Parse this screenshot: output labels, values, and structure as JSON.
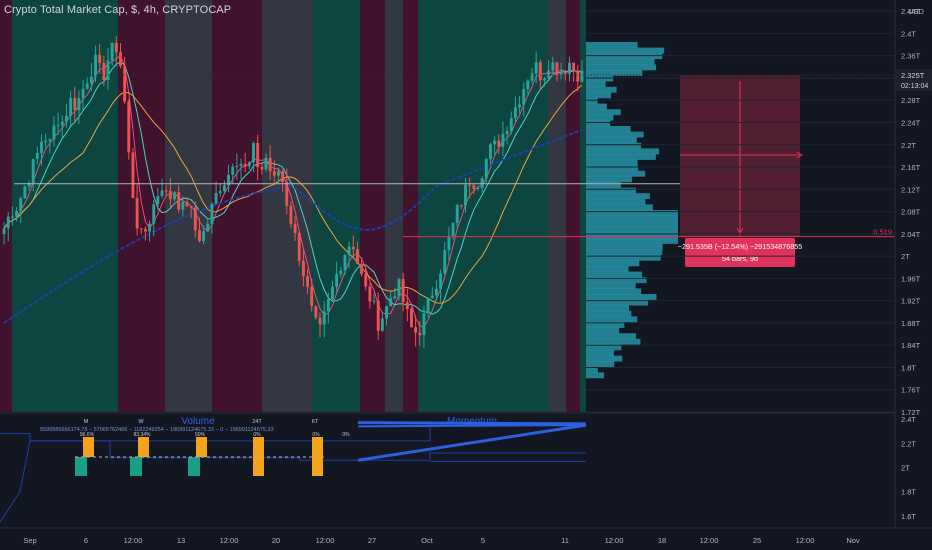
{
  "header": {
    "title": "Crypto Total Market Cap, $, 4h, CRYPTOCAP",
    "currency": "USD"
  },
  "price_scale": {
    "ticks": [
      "2.44T",
      "2.4T",
      "2.36T",
      "2.325T",
      "2.28T",
      "2.24T",
      "2.2T",
      "2.16T",
      "2.12T",
      "2.08T",
      "2.04T",
      "2T",
      "1.96T",
      "1.92T",
      "1.88T",
      "1.84T",
      "1.8T",
      "1.76T",
      "1.72T"
    ],
    "last_price": "2.325T",
    "countdown": "02:13:04",
    "level_label": "0.519"
  },
  "lower_scale": {
    "ticks": [
      "2.4T",
      "2.2T",
      "2T",
      "1.8T",
      "1.6T"
    ]
  },
  "time_axis": {
    "ticks": [
      "Sep",
      "6",
      "12:00",
      "13",
      "12:00",
      "20",
      "12:00",
      "27",
      "Oct",
      "5",
      "11",
      "12:00",
      "18",
      "12:00",
      "25",
      "12:00",
      "Nov"
    ]
  },
  "measure": {
    "line1": "−291.535B (−12.54%) −291534876855",
    "line2": "54 bars, 9d"
  },
  "indicators": {
    "volume_label": "Volume",
    "momentum_label": "Momentum",
    "label_M": "M",
    "label_W": "W",
    "label_24T": "24T",
    "label_6T": "6T",
    "stat_1": "96.6%",
    "stat_2": "83.34%",
    "stat_3": "50%",
    "stat_4": "0%",
    "stat_5": "0%",
    "stat_6": "0%",
    "vol_text": "5599585666174.78 − 57965762466 − 1182249254 − 196991124675.33 − 0 − 196991124675.33"
  },
  "colors": {
    "background": "#131722",
    "bull": "#26a69a",
    "bear": "#ef5350",
    "green_zone": "#0d4f45",
    "red_zone": "#4a1230",
    "gray_zone": "#3a3d48",
    "profile": "#2aa3b8",
    "ma_blue": "#1e3fa8",
    "ma_orange": "#e8a33c",
    "ma_teal": "#4fd2c9",
    "ma_pink": "#e0507a",
    "measure_box": "#5a1f33",
    "measure_label": "#e2325c",
    "orange_bar": "#f5a31a",
    "teal_bar": "#1a9e87"
  },
  "chart_data": {
    "type": "candlestick",
    "title": "Crypto Total Market Cap, $, 4h, CRYPTOCAP",
    "unit": "USD",
    "ylim": [
      1.72,
      2.46
    ],
    "x_ticks": [
      "Sep",
      "6",
      "12:00",
      "13",
      "12:00",
      "20",
      "12:00",
      "27",
      "Oct",
      "5",
      "11",
      "12:00",
      "18",
      "12:00",
      "25",
      "12:00",
      "Nov"
    ],
    "close_path": [
      2.05,
      2.08,
      2.09,
      2.12,
      2.15,
      2.18,
      2.22,
      2.2,
      2.25,
      2.24,
      2.28,
      2.27,
      2.3,
      2.33,
      2.35,
      2.32,
      2.36,
      2.38,
      2.33,
      2.18,
      2.07,
      2.03,
      2.06,
      2.1,
      2.13,
      2.1,
      2.12,
      2.08,
      2.1,
      2.05,
      2.03,
      2.06,
      2.1,
      2.13,
      2.14,
      2.18,
      2.17,
      2.15,
      2.19,
      2.15,
      2.18,
      2.13,
      2.16,
      2.1,
      2.05,
      2.0,
      1.95,
      1.89,
      1.86,
      1.9,
      1.94,
      1.98,
      2.01,
      2.03,
      1.98,
      1.94,
      1.92,
      1.88,
      1.9,
      1.93,
      1.95,
      1.91,
      1.87,
      1.86,
      1.89,
      1.93,
      1.96,
      2.0,
      2.04,
      2.08,
      2.11,
      2.14,
      2.13,
      2.16,
      2.19,
      2.2,
      2.22,
      2.25,
      2.27,
      2.3,
      2.33,
      2.34,
      2.32,
      2.35,
      2.34,
      2.33,
      2.35,
      2.33,
      2.325
    ],
    "last": 2.325,
    "horizontal_line": 2.13,
    "level_line": 2.035,
    "level_value": 0.519,
    "measure": {
      "change": "−291.535B",
      "percent": "−12.54%",
      "bars": 54,
      "days": 9
    },
    "lower_panel": {
      "ylim": [
        1.5,
        2.45
      ],
      "labels": [
        "Volume",
        "Momentum"
      ]
    }
  }
}
